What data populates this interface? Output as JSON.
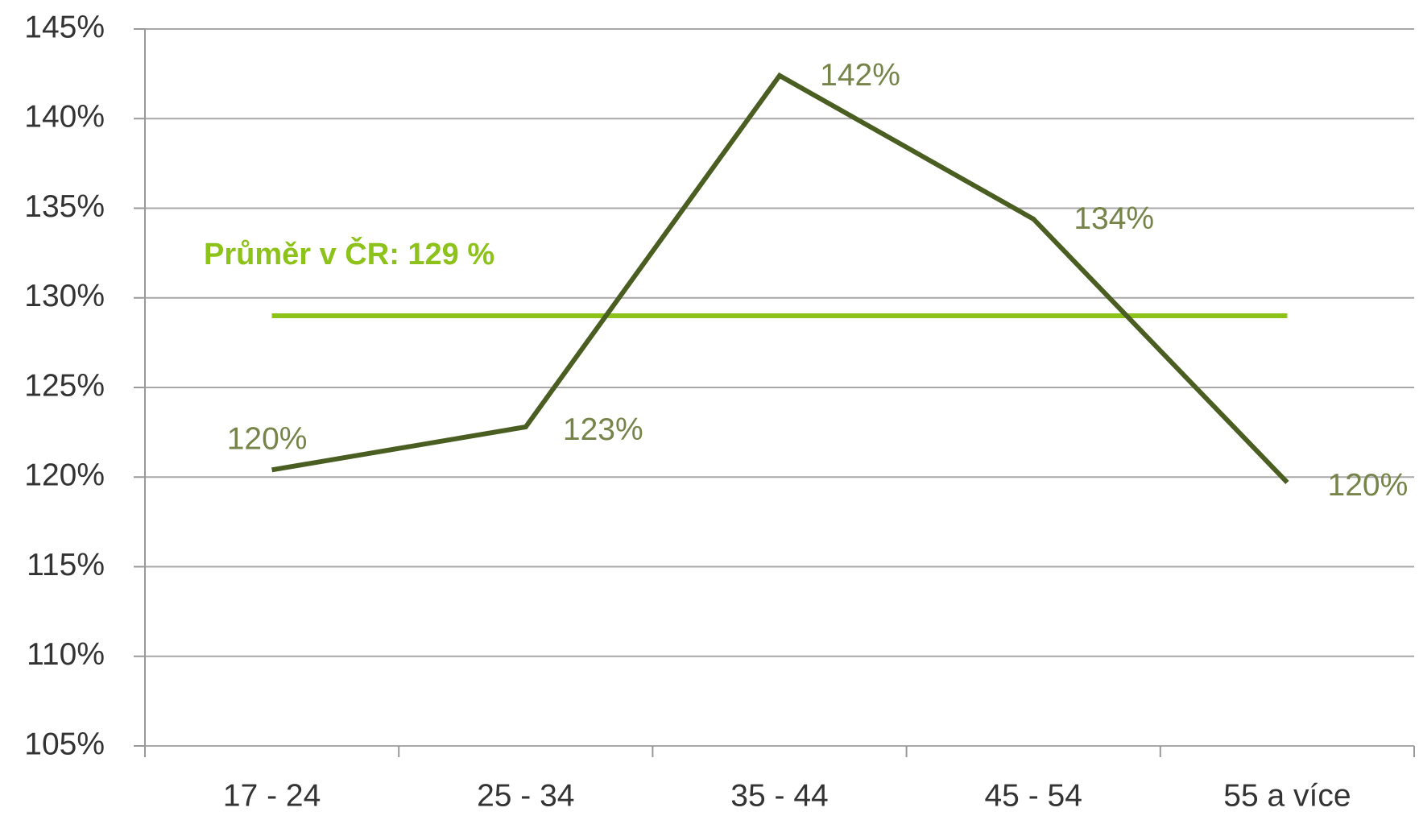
{
  "chart_data": {
    "type": "line",
    "categories": [
      "17 - 24",
      "25 - 34",
      "35 - 44",
      "45 - 54",
      "55 a více"
    ],
    "series": [
      {
        "name": null,
        "color": "#4b5e22",
        "values": [
          120.4,
          122.8,
          142.4,
          134.4,
          119.7
        ],
        "value_labels": [
          "120%",
          "123%",
          "142%",
          "134%",
          "120%"
        ]
      }
    ],
    "reference_line": {
      "value": 129,
      "label": "Průměr v ČR: 129 %",
      "color": "#8cc21a"
    },
    "ylim": [
      105,
      145
    ],
    "yticks": [
      {
        "value": 105,
        "label": "105%"
      },
      {
        "value": 110,
        "label": "110%"
      },
      {
        "value": 115,
        "label": "115%"
      },
      {
        "value": 120,
        "label": "120%"
      },
      {
        "value": 125,
        "label": "125%"
      },
      {
        "value": 130,
        "label": "130%"
      },
      {
        "value": 135,
        "label": "135%"
      },
      {
        "value": 140,
        "label": "140%"
      },
      {
        "value": 145,
        "label": "145%"
      }
    ],
    "grid": true
  }
}
